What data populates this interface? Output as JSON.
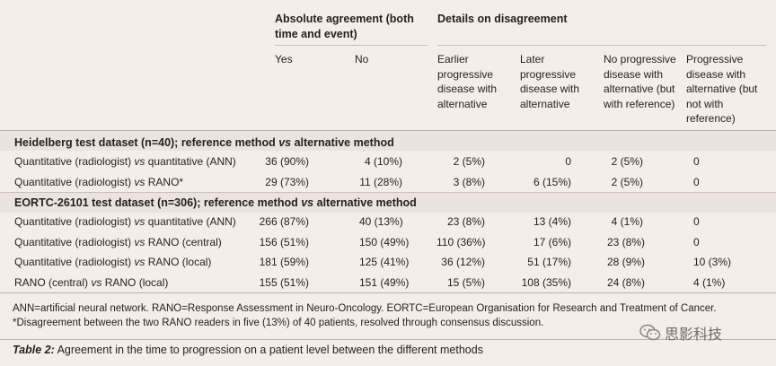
{
  "header": {
    "group_agreement": "Absolute agreement (both time and event)",
    "group_disagreement": "Details on disagreement",
    "columns": [
      "Yes",
      "No",
      "Earlier progressive disease with alternative",
      "Later progressive disease with alternative",
      "No progressive disease with alternative (but with reference)",
      "Progressive disease with alternative (but not with reference)"
    ]
  },
  "sections": [
    {
      "title": "Heidelberg test dataset (n=40); reference method vs alternative method",
      "rows": [
        {
          "label": "Quantitative (radiologist) vs quantitative (ANN)",
          "yes": "36 (90%)",
          "no": "4 (10%)",
          "earlier": "2 (5%)",
          "later": "0",
          "no_pd": "2 (5%)",
          "pd": "0"
        },
        {
          "label": "Quantitative (radiologist) vs RANO*",
          "yes": "29 (73%)",
          "no": "11 (28%)",
          "earlier": "3 (8%)",
          "later": "6 (15%)",
          "no_pd": "2 (5%)",
          "pd": "0"
        }
      ]
    },
    {
      "title": "EORTC-26101 test dataset (n=306); reference method vs alternative method",
      "rows": [
        {
          "label": "Quantitative (radiologist) vs quantitative (ANN)",
          "yes": "266 (87%)",
          "no": "40 (13%)",
          "earlier": "23 (8%)",
          "later": "13 (4%)",
          "no_pd": "4 (1%)",
          "pd": "0"
        },
        {
          "label": "Quantitative (radiologist) vs RANO (central)",
          "yes": "156 (51%)",
          "no": "150 (49%)",
          "earlier": "110 (36%)",
          "later": "17 (6%)",
          "no_pd": "23 (8%)",
          "pd": "0"
        },
        {
          "label": "Quantitative (radiologist) vs RANO (local)",
          "yes": "181 (59%)",
          "no": "125 (41%)",
          "earlier": "36 (12%)",
          "later": "51 (17%)",
          "no_pd": "28 (9%)",
          "pd": "10 (3%)"
        },
        {
          "label": "RANO (central) vs RANO (local)",
          "yes": "155 (51%)",
          "no": "151 (49%)",
          "earlier": "15 (5%)",
          "later": "108 (35%)",
          "no_pd": "24 (8%)",
          "pd": "4 (1%)"
        }
      ]
    }
  ],
  "footnote": "ANN=artificial neural network. RANO=Response Assessment in Neuro-Oncology. EORTC=European Organisation for Research and Treatment of Cancer. *Disagreement between the two RANO readers in five (13%) of 40 patients, resolved through consensus discussion.",
  "caption": {
    "label": "Table 2:",
    "text": "Agreement in the time to progression on a patient level between the different methods"
  },
  "watermark": "思影科技",
  "icons": {
    "watermark_logo": "wechat-icon"
  },
  "colors": {
    "background": "#f3eeea",
    "band": "#ebe3de",
    "rule": "#c9bfbb"
  }
}
